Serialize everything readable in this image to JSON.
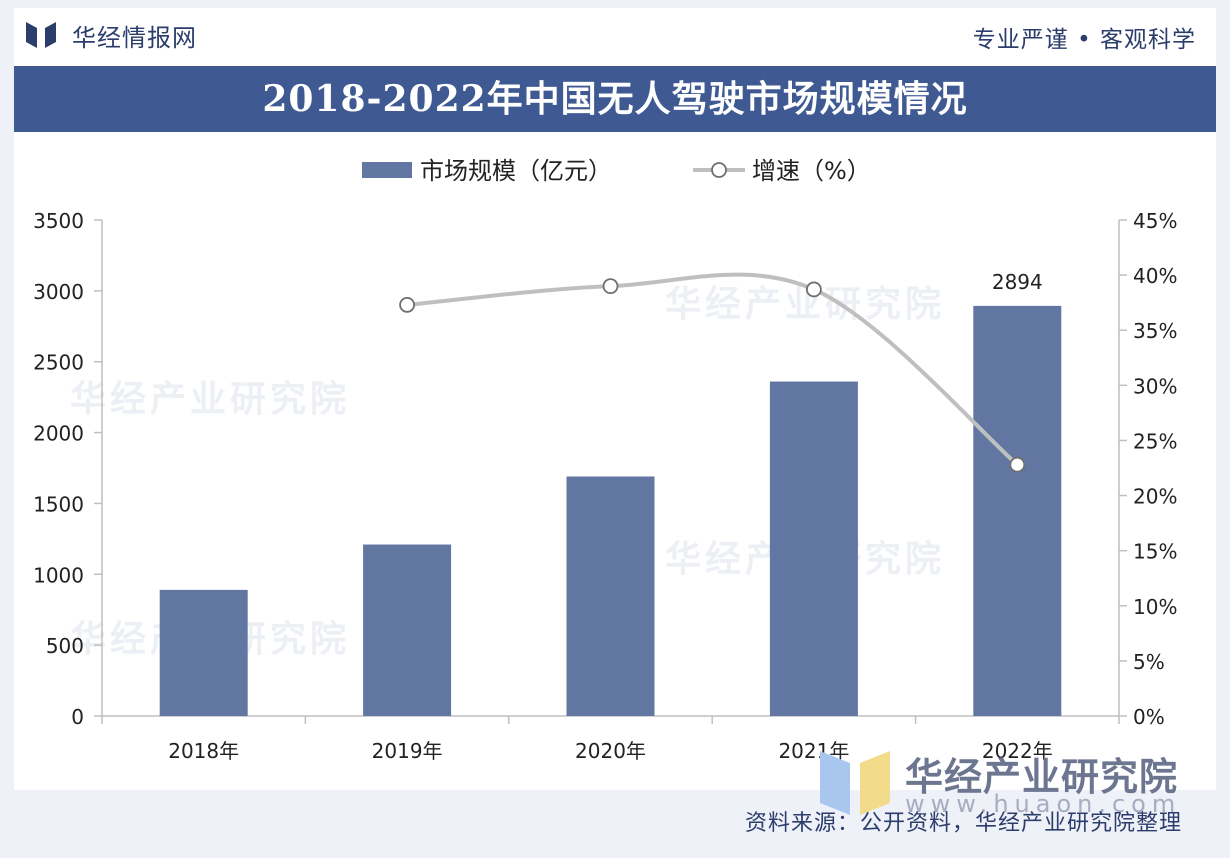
{
  "header": {
    "brand": "华经情报网",
    "slogan": "专业严谨 • 客观科学"
  },
  "title": "2018-2022年中国无人驾驶市场规模情况",
  "footer": {
    "source": "资料来源：公开资料，华经产业研究院整理",
    "watermark_brand": "华经产业研究院",
    "watermark_url": "www.huaon.com"
  },
  "colors": {
    "bar": "#6177a2",
    "line": "#bfbfbf",
    "title_bg": "#3f5a93",
    "brand": "#2b3d6b"
  },
  "chart_data": {
    "type": "bar",
    "categories": [
      "2018年",
      "2019年",
      "2020年",
      "2021年",
      "2022年"
    ],
    "series": [
      {
        "name": "市场规模（亿元）",
        "type": "bar",
        "axis": "left",
        "values": [
          890,
          1210,
          1690,
          2360,
          2894
        ]
      },
      {
        "name": "增速（%）",
        "type": "line",
        "axis": "right",
        "values": [
          null,
          37.3,
          39.0,
          38.7,
          22.8
        ]
      }
    ],
    "data_labels": [
      {
        "category": "2022年",
        "text": "2894"
      }
    ],
    "ylim_left": [
      0,
      3500
    ],
    "yticks_left": [
      "0",
      "500",
      "1000",
      "1500",
      "2000",
      "2500",
      "3000",
      "3500"
    ],
    "ylim_right": [
      0,
      45
    ],
    "yticks_right": [
      "0%",
      "5%",
      "10%",
      "15%",
      "20%",
      "25%",
      "30%",
      "35%",
      "40%",
      "45%"
    ],
    "legend_position": "top-center",
    "grid": false
  }
}
